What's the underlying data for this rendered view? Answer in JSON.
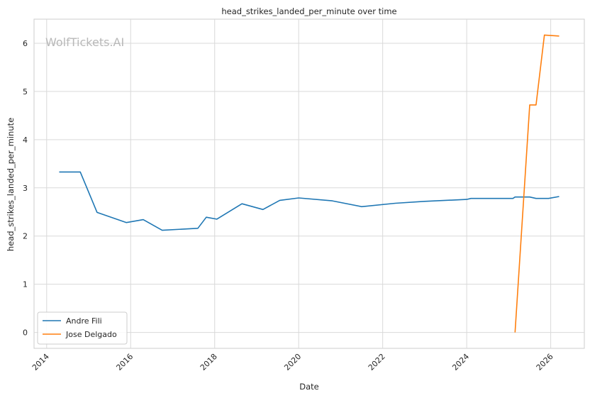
{
  "chart_data": {
    "type": "line",
    "title": "head_strikes_landed_per_minute over time",
    "xlabel": "Date",
    "ylabel": "head_strikes_landed_per_minute",
    "watermark": "WolfTickets.AI",
    "xlim": [
      2013.7,
      2026.8
    ],
    "ylim": [
      -0.33,
      6.5
    ],
    "x_ticks": [
      2014,
      2016,
      2018,
      2020,
      2022,
      2024,
      2026
    ],
    "x_tick_labels": [
      "2014",
      "2016",
      "2018",
      "2020",
      "2022",
      "2024",
      "2026"
    ],
    "y_ticks": [
      0,
      1,
      2,
      3,
      4,
      5,
      6
    ],
    "y_tick_labels": [
      "0",
      "1",
      "2",
      "3",
      "4",
      "5",
      "6"
    ],
    "grid": true,
    "legend_position": "lower-left",
    "series": [
      {
        "name": "Andre Fili",
        "color": "#1f77b4",
        "x": [
          2014.3,
          2014.8,
          2015.2,
          2015.9,
          2016.3,
          2016.75,
          2017.6,
          2017.8,
          2018.05,
          2018.65,
          2019.15,
          2019.55,
          2020.0,
          2020.8,
          2021.5,
          2022.3,
          2023.0,
          2024.0,
          2024.1,
          2025.1,
          2025.15,
          2025.5,
          2025.65,
          2025.95,
          2026.2
        ],
        "y": [
          3.33,
          3.33,
          2.49,
          2.28,
          2.34,
          2.12,
          2.16,
          2.39,
          2.35,
          2.67,
          2.55,
          2.74,
          2.79,
          2.73,
          2.61,
          2.68,
          2.72,
          2.76,
          2.78,
          2.78,
          2.81,
          2.81,
          2.78,
          2.78,
          2.82
        ]
      },
      {
        "name": "Jose Delgado",
        "color": "#ff7f0e",
        "x": [
          2025.15,
          2025.5,
          2025.65,
          2025.85,
          2026.2
        ],
        "y": [
          0.0,
          4.72,
          4.72,
          6.17,
          6.15
        ]
      }
    ]
  }
}
